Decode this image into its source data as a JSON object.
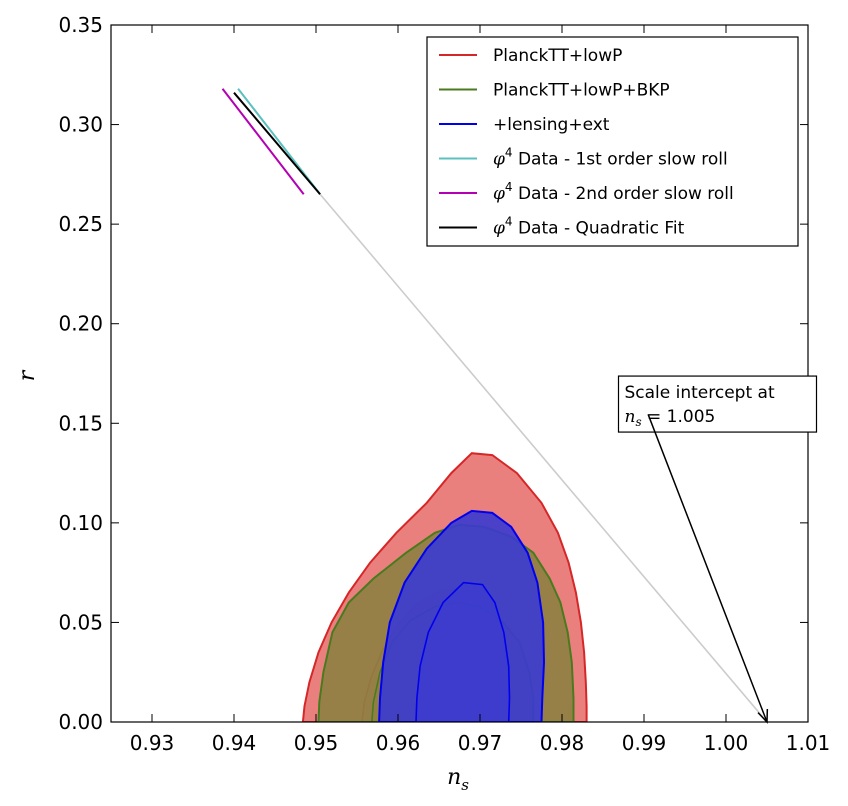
{
  "chart_data": {
    "type": "contour",
    "xlabel": "n_s",
    "ylabel": "r",
    "xlim": [
      0.925,
      1.01
    ],
    "ylim": [
      0.0,
      0.35
    ],
    "x_ticks": [
      0.93,
      0.94,
      0.95,
      0.96,
      0.97,
      0.98,
      0.99,
      1.0,
      1.01
    ],
    "x_tick_labels": [
      "0.93",
      "0.94",
      "0.95",
      "0.96",
      "0.97",
      "0.98",
      "0.99",
      "1.00",
      "1.01"
    ],
    "y_ticks": [
      0.0,
      0.05,
      0.1,
      0.15,
      0.2,
      0.25,
      0.3,
      0.35
    ],
    "y_tick_labels": [
      "0.00",
      "0.05",
      "0.10",
      "0.15",
      "0.20",
      "0.25",
      "0.30",
      "0.35"
    ],
    "grid": false,
    "legend_position": "top-right",
    "regions": [
      {
        "name": "PlanckTT+lowP",
        "color": "#d62728",
        "fill": "#e8726f",
        "contour_95": [
          [
            0.9484,
            0
          ],
          [
            0.9486,
            0.008
          ],
          [
            0.9492,
            0.02
          ],
          [
            0.9503,
            0.035
          ],
          [
            0.9519,
            0.05
          ],
          [
            0.954,
            0.065
          ],
          [
            0.9566,
            0.08
          ],
          [
            0.9598,
            0.095
          ],
          [
            0.9635,
            0.11
          ],
          [
            0.9665,
            0.125
          ],
          [
            0.969,
            0.135
          ],
          [
            0.9715,
            0.134
          ],
          [
            0.9745,
            0.125
          ],
          [
            0.9775,
            0.11
          ],
          [
            0.9795,
            0.095
          ],
          [
            0.9808,
            0.08
          ],
          [
            0.9817,
            0.065
          ],
          [
            0.9823,
            0.05
          ],
          [
            0.9827,
            0.035
          ],
          [
            0.9829,
            0.02
          ],
          [
            0.983,
            0.008
          ],
          [
            0.983,
            0
          ]
        ],
        "contour_68": [
          [
            0.9556,
            0
          ],
          [
            0.9559,
            0.01
          ],
          [
            0.9567,
            0.022
          ],
          [
            0.958,
            0.035
          ],
          [
            0.96,
            0.049
          ],
          [
            0.9625,
            0.06
          ],
          [
            0.9653,
            0.066
          ],
          [
            0.9683,
            0.067
          ],
          [
            0.971,
            0.06
          ],
          [
            0.9731,
            0.048
          ],
          [
            0.9743,
            0.035
          ],
          [
            0.9748,
            0.022
          ],
          [
            0.975,
            0.01
          ],
          [
            0.975,
            0
          ]
        ]
      },
      {
        "name": "PlanckTT+lowP+BKP",
        "color": "#4a7a1e",
        "fill": "#8d8042",
        "contour_95": [
          [
            0.9503,
            0
          ],
          [
            0.9504,
            0.01
          ],
          [
            0.9509,
            0.025
          ],
          [
            0.952,
            0.045
          ],
          [
            0.954,
            0.06
          ],
          [
            0.957,
            0.072
          ],
          [
            0.961,
            0.085
          ],
          [
            0.9645,
            0.095
          ],
          [
            0.9675,
            0.099
          ],
          [
            0.9705,
            0.098
          ],
          [
            0.9738,
            0.093
          ],
          [
            0.9765,
            0.085
          ],
          [
            0.9785,
            0.072
          ],
          [
            0.9798,
            0.06
          ],
          [
            0.9807,
            0.045
          ],
          [
            0.9812,
            0.03
          ],
          [
            0.9814,
            0.012
          ],
          [
            0.9814,
            0
          ]
        ],
        "contour_68": [
          [
            0.9568,
            0
          ],
          [
            0.957,
            0.01
          ],
          [
            0.9578,
            0.025
          ],
          [
            0.9593,
            0.04
          ],
          [
            0.9615,
            0.051
          ],
          [
            0.9645,
            0.058
          ],
          [
            0.9672,
            0.06
          ],
          [
            0.97,
            0.058
          ],
          [
            0.9728,
            0.05
          ],
          [
            0.9748,
            0.04
          ],
          [
            0.976,
            0.025
          ],
          [
            0.9765,
            0.012
          ],
          [
            0.9765,
            0
          ]
        ]
      },
      {
        "name": "+lensing+ext",
        "color": "#0000ee",
        "fill": "#3a3ad2",
        "contour_95": [
          [
            0.9577,
            0
          ],
          [
            0.9578,
            0.012
          ],
          [
            0.9582,
            0.03
          ],
          [
            0.959,
            0.05
          ],
          [
            0.9608,
            0.07
          ],
          [
            0.9635,
            0.087
          ],
          [
            0.9665,
            0.1
          ],
          [
            0.969,
            0.106
          ],
          [
            0.9715,
            0.105
          ],
          [
            0.9738,
            0.098
          ],
          [
            0.9758,
            0.085
          ],
          [
            0.977,
            0.07
          ],
          [
            0.9777,
            0.05
          ],
          [
            0.9778,
            0.03
          ],
          [
            0.9776,
            0.012
          ],
          [
            0.9775,
            0
          ]
        ],
        "contour_68": [
          [
            0.9622,
            0
          ],
          [
            0.9623,
            0.012
          ],
          [
            0.9627,
            0.028
          ],
          [
            0.9637,
            0.045
          ],
          [
            0.9655,
            0.06
          ],
          [
            0.968,
            0.07
          ],
          [
            0.9703,
            0.069
          ],
          [
            0.9718,
            0.06
          ],
          [
            0.9729,
            0.045
          ],
          [
            0.9735,
            0.028
          ],
          [
            0.9736,
            0.012
          ],
          [
            0.9735,
            0
          ]
        ]
      }
    ],
    "lines": [
      {
        "name": "φ⁴ Data - 1st order slow roll",
        "color": "#5bc0be",
        "x": [
          0.9405,
          0.9505
        ],
        "y": [
          0.318,
          0.265
        ]
      },
      {
        "name": "φ⁴ Data - 2nd order slow roll",
        "color": "#b300b3",
        "x": [
          0.9386,
          0.9485
        ],
        "y": [
          0.318,
          0.265
        ]
      },
      {
        "name": "φ⁴ Data - Quadratic Fit",
        "color": "#000000",
        "x": [
          0.94,
          0.9505
        ],
        "y": [
          0.316,
          0.265
        ]
      }
    ],
    "fit_line": {
      "color": "#cccccc",
      "x": [
        0.9505,
        1.005
      ],
      "y": [
        0.265,
        0.0
      ]
    },
    "annotation": {
      "line1": "Scale intercept at",
      "line2_italic": "n",
      "line2_sub": "s",
      "line2_rest": " = 1.005",
      "text_anchor": [
        0.9875,
        0.1712
      ],
      "arrow_from": [
        0.9905,
        0.1545
      ],
      "arrow_to": [
        1.005,
        0.0
      ]
    }
  },
  "legend": {
    "items": [
      {
        "label": "PlanckTT+lowP",
        "color": "#d62728"
      },
      {
        "label": "PlanckTT+lowP+BKP",
        "color": "#4a7a1e"
      },
      {
        "label": "+lensing+ext",
        "color": "#0000ee"
      },
      {
        "label": "Data - 1st order slow roll",
        "prefix": "φ",
        "sup": "4",
        "color": "#5bc0be"
      },
      {
        "label": "Data - 2nd order slow roll",
        "prefix": "φ",
        "sup": "4",
        "color": "#b300b3"
      },
      {
        "label": "Data - Quadratic Fit",
        "prefix": "φ",
        "sup": "4",
        "color": "#000000"
      }
    ]
  },
  "axis_titles": {
    "x_main": "n",
    "x_sub": "s",
    "y": "r"
  }
}
